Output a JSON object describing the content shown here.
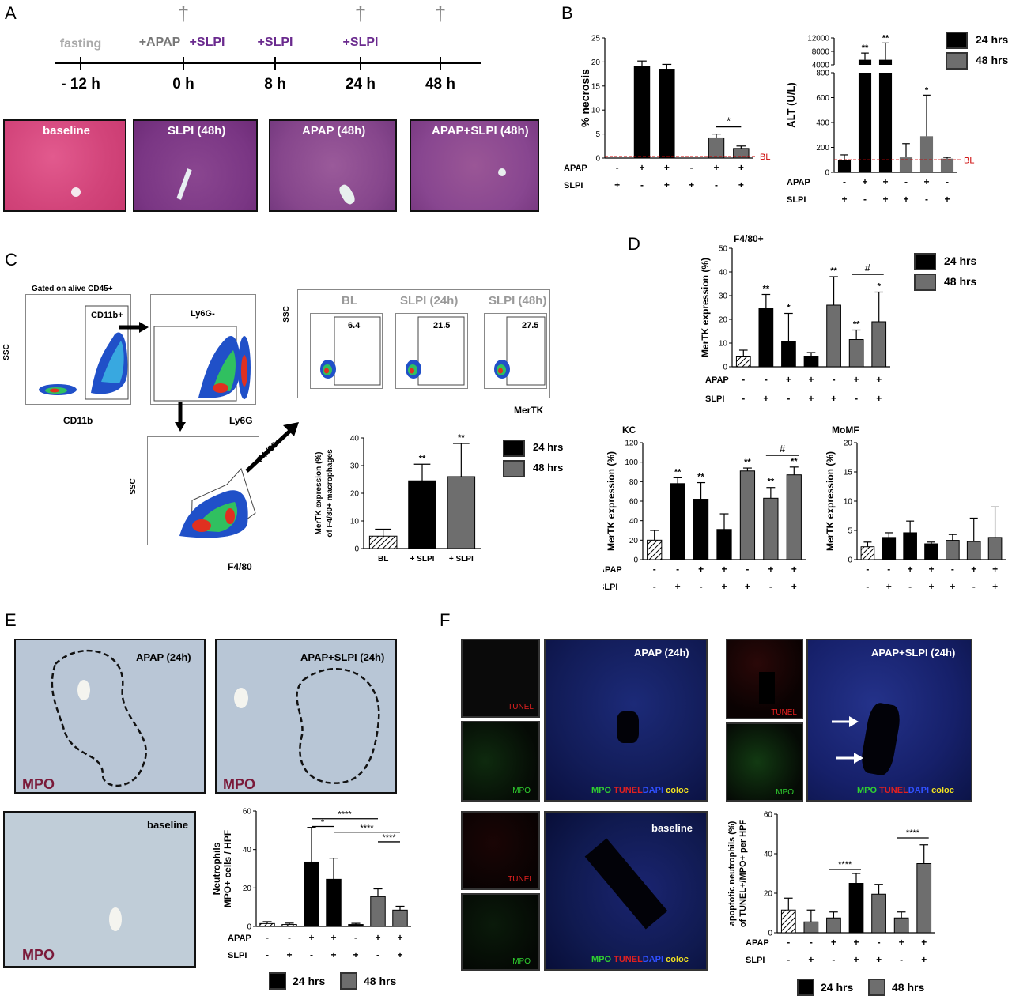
{
  "panels": {
    "A": "A",
    "B": "B",
    "C": "C",
    "D": "D",
    "E": "E",
    "F": "F"
  },
  "colors": {
    "black": "#000000",
    "grey": "#6e6e6e",
    "purple": "#6a2a8e",
    "red": "#cc0000",
    "he_pink": "#d2447a",
    "he_purple": "#7d3a8a"
  },
  "panel_a": {
    "timeline": {
      "events": [
        {
          "time": "- 12 h",
          "above": "fasting",
          "above2": "",
          "dagger": false
        },
        {
          "time": "0 h",
          "above": "+APAP",
          "above2": "+SLPI",
          "dagger": true
        },
        {
          "time": "8 h",
          "above": "+SLPI",
          "above2": "",
          "dagger": false
        },
        {
          "time": "24 h",
          "above": "+SLPI",
          "above2": "",
          "dagger": true
        },
        {
          "time": "48 h",
          "above": "",
          "above2": "",
          "dagger": true
        }
      ],
      "dagger": "†"
    },
    "histology": [
      {
        "label": "baseline"
      },
      {
        "label": "SLPI (48h)"
      },
      {
        "label": "APAP (48h)"
      },
      {
        "label": "APAP+SLPI (48h)"
      }
    ]
  },
  "legend": {
    "h24": "24 hrs",
    "h48": "48 hrs"
  },
  "row_labels": {
    "apap": "APAP",
    "slpi": "SLPI"
  },
  "chart_data": [
    {
      "id": "necrosis",
      "type": "bar",
      "title": "",
      "ylabel": "% necrosis",
      "ylim": [
        0,
        25
      ],
      "yticks": [
        0,
        5,
        10,
        15,
        20,
        25
      ],
      "apap": [
        "-",
        "+",
        "+",
        "-",
        "+",
        "+"
      ],
      "slpi": [
        "+",
        "-",
        "+",
        "+",
        "-",
        "+"
      ],
      "bar_colors": [
        "black",
        "black",
        "black",
        "grey",
        "grey",
        "grey"
      ],
      "values": [
        0,
        19,
        18.5,
        0,
        4.2,
        2
      ],
      "errors": [
        0,
        1.2,
        1,
        0,
        0.8,
        0.5
      ],
      "baseline": {
        "label": "BL",
        "value": 0.3
      },
      "annotations": [
        {
          "text": "*",
          "from": 4,
          "to": 5
        }
      ]
    },
    {
      "id": "alt",
      "type": "bar",
      "ylabel": "ALT (U/L)",
      "broken_axis": true,
      "yticks_lower": [
        0,
        200,
        400,
        600,
        800
      ],
      "yticks_upper": [
        4000,
        8000,
        12000
      ],
      "apap": [
        "-",
        "+",
        "+",
        "-",
        "+",
        "-"
      ],
      "slpi": [
        "+",
        "-",
        "+",
        "+",
        "-",
        "+"
      ],
      "bar_colors": [
        "black",
        "black",
        "black",
        "grey",
        "grey",
        "grey"
      ],
      "values": [
        100,
        5500,
        5500,
        120,
        290,
        110
      ],
      "errors": [
        40,
        2000,
        5000,
        110,
        330,
        10
      ],
      "stars": [
        "",
        "**",
        "**",
        "",
        "*",
        ""
      ],
      "baseline": {
        "label": "BL",
        "value": 100
      }
    },
    {
      "id": "f480",
      "type": "bar",
      "title": "F4/80+",
      "ylabel": "MerTK expression (%)",
      "ylim": [
        0,
        50
      ],
      "yticks": [
        0,
        10,
        20,
        30,
        40,
        50
      ],
      "apap": [
        "-",
        "-",
        "+",
        "+",
        "-",
        "+",
        "+"
      ],
      "slpi": [
        "-",
        "+",
        "-",
        "+",
        "+",
        "-",
        "+"
      ],
      "bar_colors": [
        "hatch",
        "black",
        "black",
        "black",
        "grey",
        "grey",
        "grey"
      ],
      "values": [
        4.5,
        24.5,
        10.5,
        4.5,
        26,
        11.5,
        19
      ],
      "errors": [
        2.5,
        6,
        12,
        1.5,
        12,
        4,
        12.5
      ],
      "stars": [
        "",
        "**",
        "*",
        "",
        "**",
        "**",
        "*"
      ],
      "annotations": [
        {
          "text": "#",
          "from": 5,
          "to": 6
        }
      ]
    },
    {
      "id": "kc",
      "type": "bar",
      "title": "KC",
      "ylabel": "MerTK expression (%)",
      "ylim": [
        0,
        120
      ],
      "yticks": [
        0,
        20,
        40,
        60,
        80,
        100,
        120
      ],
      "apap": [
        "-",
        "-",
        "+",
        "+",
        "-",
        "+",
        "+"
      ],
      "slpi": [
        "-",
        "+",
        "-",
        "+",
        "+",
        "-",
        "+"
      ],
      "bar_colors": [
        "hatch",
        "black",
        "black",
        "black",
        "grey",
        "grey",
        "grey"
      ],
      "values": [
        20,
        78,
        62,
        31,
        91,
        63,
        87
      ],
      "errors": [
        10,
        6,
        17,
        16,
        3,
        11,
        8
      ],
      "stars": [
        "",
        "**",
        "**",
        "",
        "**",
        "**",
        "**"
      ],
      "annotations": [
        {
          "text": "#",
          "from": 5,
          "to": 6
        }
      ]
    },
    {
      "id": "momf",
      "type": "bar",
      "title": "MoMF",
      "ylabel": "MerTK expression (%)",
      "ylim": [
        0,
        20
      ],
      "yticks": [
        0,
        5,
        10,
        15,
        20
      ],
      "apap": [
        "-",
        "-",
        "+",
        "+",
        "-",
        "+",
        "+"
      ],
      "slpi": [
        "-",
        "+",
        "-",
        "+",
        "+",
        "-",
        "+"
      ],
      "bar_colors": [
        "hatch",
        "black",
        "black",
        "black",
        "grey",
        "grey",
        "grey"
      ],
      "values": [
        2.2,
        3.8,
        4.6,
        2.7,
        3.3,
        3.1,
        3.8
      ],
      "errors": [
        0.8,
        0.8,
        2,
        0.3,
        1,
        4,
        5.2
      ],
      "stars": [
        "",
        "",
        "",
        "",
        "",
        "",
        ""
      ]
    },
    {
      "id": "c_mertk",
      "type": "bar",
      "ylabel": "MerTK expression (%)",
      "ylabel2": "of F4/80+ macrophages",
      "ylim": [
        0,
        40
      ],
      "yticks": [
        0,
        10,
        20,
        30,
        40
      ],
      "categories": [
        "BL",
        "+ SLPI",
        "+ SLPI"
      ],
      "bar_colors": [
        "hatch",
        "black",
        "grey"
      ],
      "values": [
        4.5,
        24.5,
        26
      ],
      "errors": [
        2.5,
        6,
        12
      ],
      "stars": [
        "",
        "**",
        "**"
      ]
    },
    {
      "id": "neutrophils",
      "type": "bar",
      "ylabel": "Neutrophils",
      "ylabel2": "MPO+ cells / HPF",
      "ylim": [
        0,
        60
      ],
      "yticks": [
        0,
        20,
        40,
        60
      ],
      "apap": [
        "-",
        "-",
        "+",
        "+",
        "-",
        "+",
        "+"
      ],
      "slpi": [
        "-",
        "+",
        "-",
        "+",
        "+",
        "-",
        "+"
      ],
      "bar_colors": [
        "hatch",
        "hatch",
        "black",
        "black",
        "black",
        "grey",
        "grey"
      ],
      "values": [
        1.5,
        1,
        33.5,
        24.5,
        1,
        15.5,
        8.5
      ],
      "errors": [
        1,
        0.7,
        18,
        11,
        0.6,
        4,
        2
      ],
      "annotations": [
        {
          "text": "****",
          "from": 2,
          "to": 5,
          "level": 0
        },
        {
          "text": "*",
          "from": 2,
          "to": 3,
          "level": 1
        },
        {
          "text": "****",
          "from": 3,
          "to": 6,
          "level": 2
        },
        {
          "text": "****",
          "from": 5,
          "to": 6,
          "level": 3
        }
      ]
    },
    {
      "id": "apoptotic",
      "type": "bar",
      "ylabel": "apoptotic neutrophils (%)",
      "ylabel2": "of TUNEL+/MPO+ per HPF",
      "ylim": [
        0,
        60
      ],
      "yticks": [
        0,
        20,
        40,
        60
      ],
      "apap": [
        "-",
        "-",
        "+",
        "+",
        "-",
        "+",
        "+"
      ],
      "slpi": [
        "-",
        "+",
        "-",
        "+",
        "+",
        "-",
        "+"
      ],
      "bar_colors": [
        "hatch",
        "grey",
        "grey",
        "black",
        "grey",
        "grey",
        "grey"
      ],
      "values": [
        11.5,
        5.5,
        7.5,
        25,
        19.5,
        7.5,
        35
      ],
      "errors": [
        6,
        6,
        3,
        5,
        5,
        3,
        9.5
      ],
      "annotations": [
        {
          "text": "****",
          "from": 2,
          "to": 3
        },
        {
          "text": "****",
          "from": 5,
          "to": 6
        }
      ]
    }
  ],
  "panel_c": {
    "gate_text": "Gated on alive CD45+",
    "plot1": {
      "gate": "CD11b+",
      "x": "CD11b",
      "y": "SSC"
    },
    "plot2": {
      "gate": "Ly6G-",
      "x": "Ly6G"
    },
    "plot3": {
      "x": "F4/80",
      "y": "SSC",
      "arrow": "F4 /80+"
    },
    "mertk": {
      "y": "SSC",
      "x": "MerTK",
      "plots": [
        {
          "title": "BL",
          "value": "6.4"
        },
        {
          "title": "SLPI (24h)",
          "value": "21.5"
        },
        {
          "title": "SLPI (48h)",
          "value": "27.5"
        }
      ]
    }
  },
  "panel_e": {
    "images": [
      {
        "label": "APAP (24h)",
        "stain": "MPO"
      },
      {
        "label": "APAP+SLPI (24h)",
        "stain": "MPO"
      },
      {
        "label": "baseline",
        "stain": "MPO"
      }
    ]
  },
  "panel_f": {
    "images": [
      {
        "label": "APAP (24h)"
      },
      {
        "label": "APAP+SLPI (24h)"
      },
      {
        "label": "baseline"
      }
    ],
    "tunel": "TUNEL",
    "mpo": "MPO",
    "dapi": "DAPI",
    "coloc": "coloc"
  }
}
